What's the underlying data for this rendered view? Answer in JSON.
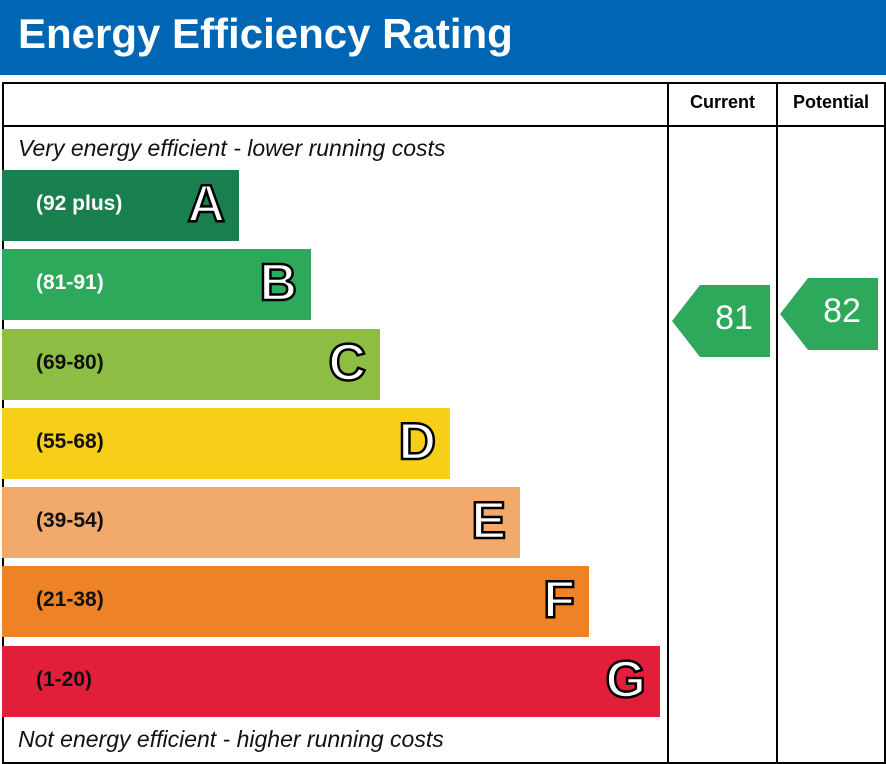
{
  "header": {
    "title": "Energy Efficiency Rating"
  },
  "columns": {
    "current": "Current",
    "potential": "Potential"
  },
  "notes": {
    "top": "Very energy efficient - lower running costs",
    "bottom": "Not energy efficient - higher running costs"
  },
  "chart_data": {
    "type": "bar",
    "title": "Energy Efficiency Rating",
    "bands": [
      {
        "letter": "A",
        "range": "(92 plus)",
        "color": "#1a7f4f",
        "text_color": "#ffffff"
      },
      {
        "letter": "B",
        "range": "(81-91)",
        "color": "#2ea85a",
        "text_color": "#ffffff"
      },
      {
        "letter": "C",
        "range": "(69-80)",
        "color": "#8dbe43",
        "text_color": "#111111"
      },
      {
        "letter": "D",
        "range": "(55-68)",
        "color": "#f7ce18",
        "text_color": "#111111"
      },
      {
        "letter": "E",
        "range": "(39-54)",
        "color": "#f2a96c",
        "text_color": "#111111"
      },
      {
        "letter": "F",
        "range": "(21-38)",
        "color": "#ee8226",
        "text_color": "#111111"
      },
      {
        "letter": "G",
        "range": "(1-20)",
        "color": "#e21f3b",
        "text_color": "#111111"
      }
    ],
    "current": {
      "value": 81,
      "band": "B",
      "color": "#2ea85a"
    },
    "potential": {
      "value": 82,
      "band": "B",
      "color": "#2ea85a"
    }
  }
}
